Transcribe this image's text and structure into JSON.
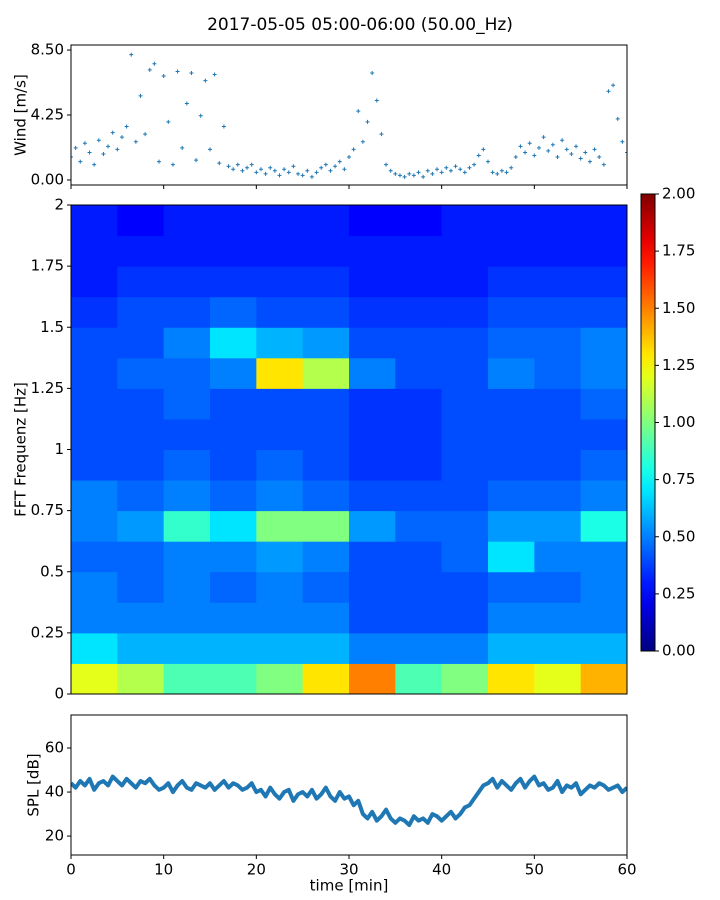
{
  "chart_data": [
    {
      "type": "scatter",
      "title": "2017-05-05 05:00-06:00 (50.00_Hz)",
      "ylabel": "Wind [m/s]",
      "color": "#1f77b4",
      "xlim": [
        0,
        60
      ],
      "ylim": [
        -0.33,
        8.83
      ],
      "yticks": [
        {
          "value": 0,
          "label": "0.00"
        },
        {
          "value": 4.25,
          "label": "4.25"
        },
        {
          "value": 8.5,
          "label": "8.50"
        }
      ],
      "x": [
        0,
        0.5,
        1,
        1.5,
        2,
        2.5,
        3,
        3.5,
        4,
        4.5,
        5,
        5.5,
        6,
        6.5,
        7,
        7.5,
        8,
        8.5,
        9,
        9.5,
        10,
        10.5,
        11,
        11.5,
        12,
        12.5,
        13,
        13.5,
        14,
        14.5,
        15,
        15.5,
        16,
        16.5,
        17,
        17.5,
        18,
        18.5,
        19,
        19.5,
        20,
        20.5,
        21,
        21.5,
        22,
        22.5,
        23,
        23.5,
        24,
        24.5,
        25,
        25.5,
        26,
        26.5,
        27,
        27.5,
        28,
        28.5,
        29,
        29.5,
        30,
        30.5,
        31,
        31.5,
        32,
        32.5,
        33,
        33.5,
        34,
        34.5,
        35,
        35.5,
        36,
        36.5,
        37,
        37.5,
        38,
        38.5,
        39,
        39.5,
        40,
        40.5,
        41,
        41.5,
        42,
        42.5,
        43,
        43.5,
        44,
        44.5,
        45,
        45.5,
        46,
        46.5,
        47,
        47.5,
        48,
        48.5,
        49,
        49.5,
        50,
        50.5,
        51,
        51.5,
        52,
        52.5,
        53,
        53.5,
        54,
        54.5,
        55,
        55.5,
        56,
        56.5,
        57,
        57.5,
        58,
        58.5,
        59,
        59.5,
        60
      ],
      "values": [
        1.5,
        2.1,
        1.2,
        2.4,
        1.8,
        1.0,
        2.6,
        1.7,
        2.2,
        3.1,
        2.0,
        2.8,
        3.5,
        8.2,
        2.5,
        5.5,
        3.0,
        7.2,
        7.6,
        1.2,
        6.8,
        3.8,
        1.0,
        7.1,
        2.1,
        5.0,
        7.0,
        1.3,
        4.2,
        6.5,
        2.0,
        6.9,
        1.1,
        3.5,
        0.9,
        0.7,
        1.0,
        0.6,
        0.8,
        1.0,
        0.5,
        0.7,
        0.4,
        0.8,
        0.6,
        0.3,
        0.7,
        0.5,
        0.9,
        0.4,
        0.3,
        0.6,
        0.2,
        0.5,
        0.8,
        1.0,
        0.6,
        0.9,
        1.2,
        0.7,
        1.5,
        2.0,
        4.5,
        2.5,
        3.8,
        7.0,
        5.2,
        3.0,
        1.0,
        0.6,
        0.4,
        0.3,
        0.2,
        0.4,
        0.3,
        0.5,
        0.2,
        0.6,
        0.4,
        0.7,
        0.5,
        0.8,
        0.6,
        0.9,
        0.7,
        0.5,
        0.8,
        1.0,
        1.6,
        2.0,
        1.2,
        0.5,
        0.4,
        0.6,
        0.5,
        0.8,
        1.5,
        2.2,
        1.8,
        2.4,
        1.6,
        2.1,
        2.8,
        1.9,
        2.3,
        1.5,
        2.6,
        2.0,
        1.7,
        2.2,
        1.4,
        1.8,
        1.2,
        2.0,
        1.5,
        1.0,
        5.8,
        6.2,
        4.0,
        2.5,
        1.8
      ]
    },
    {
      "type": "heatmap",
      "ylabel": "FFT Frequenz [Hz]",
      "colormap": "jet",
      "clim": [
        0,
        2
      ],
      "xlim": [
        0,
        60
      ],
      "ylim": [
        0,
        2
      ],
      "yticks": [
        0,
        0.25,
        0.5,
        0.75,
        1,
        1.25,
        1.5,
        1.75,
        2
      ],
      "colorbar_ticks": [
        {
          "value": 0,
          "label": "0.00"
        },
        {
          "value": 0.25,
          "label": "0.25"
        },
        {
          "value": 0.5,
          "label": "0.50"
        },
        {
          "value": 0.75,
          "label": "0.75"
        },
        {
          "value": 1,
          "label": "1.00"
        },
        {
          "value": 1.25,
          "label": "1.25"
        },
        {
          "value": 1.5,
          "label": "1.50"
        },
        {
          "value": 1.75,
          "label": "1.75"
        },
        {
          "value": 2,
          "label": "2.00"
        }
      ],
      "xbins": [
        0,
        5,
        10,
        15,
        20,
        25,
        30,
        35,
        40,
        45,
        50,
        55,
        60
      ],
      "ybins": [
        0,
        0.125,
        0.25,
        0.375,
        0.5,
        0.625,
        0.75,
        0.875,
        1,
        1.125,
        1.25,
        1.375,
        1.5,
        1.625,
        1.75,
        1.875,
        2
      ],
      "z": [
        [
          1.2,
          1.1,
          0.9,
          0.9,
          1.0,
          1.3,
          1.5,
          0.9,
          1.0,
          1.3,
          1.2,
          1.4
        ],
        [
          0.7,
          0.6,
          0.6,
          0.6,
          0.6,
          0.6,
          0.5,
          0.5,
          0.5,
          0.6,
          0.6,
          0.6
        ],
        [
          0.5,
          0.5,
          0.5,
          0.5,
          0.5,
          0.5,
          0.4,
          0.4,
          0.4,
          0.5,
          0.5,
          0.5
        ],
        [
          0.5,
          0.45,
          0.5,
          0.45,
          0.5,
          0.45,
          0.4,
          0.4,
          0.4,
          0.45,
          0.45,
          0.5
        ],
        [
          0.45,
          0.45,
          0.5,
          0.5,
          0.55,
          0.5,
          0.4,
          0.4,
          0.45,
          0.7,
          0.5,
          0.5
        ],
        [
          0.5,
          0.55,
          0.85,
          0.7,
          1.0,
          1.0,
          0.55,
          0.45,
          0.45,
          0.55,
          0.55,
          0.8
        ],
        [
          0.5,
          0.45,
          0.5,
          0.45,
          0.5,
          0.45,
          0.4,
          0.4,
          0.4,
          0.45,
          0.45,
          0.5
        ],
        [
          0.4,
          0.4,
          0.45,
          0.4,
          0.45,
          0.4,
          0.35,
          0.35,
          0.4,
          0.4,
          0.4,
          0.45
        ],
        [
          0.4,
          0.4,
          0.4,
          0.4,
          0.4,
          0.4,
          0.35,
          0.35,
          0.4,
          0.4,
          0.4,
          0.4
        ],
        [
          0.4,
          0.4,
          0.45,
          0.4,
          0.4,
          0.4,
          0.35,
          0.35,
          0.4,
          0.4,
          0.4,
          0.45
        ],
        [
          0.4,
          0.45,
          0.45,
          0.5,
          1.3,
          1.1,
          0.5,
          0.4,
          0.4,
          0.5,
          0.45,
          0.5
        ],
        [
          0.4,
          0.4,
          0.5,
          0.7,
          0.6,
          0.55,
          0.4,
          0.4,
          0.4,
          0.45,
          0.45,
          0.5
        ],
        [
          0.35,
          0.4,
          0.4,
          0.45,
          0.4,
          0.4,
          0.35,
          0.35,
          0.35,
          0.4,
          0.4,
          0.4
        ],
        [
          0.3,
          0.35,
          0.35,
          0.35,
          0.35,
          0.35,
          0.3,
          0.3,
          0.3,
          0.35,
          0.35,
          0.35
        ],
        [
          0.3,
          0.3,
          0.3,
          0.3,
          0.3,
          0.3,
          0.3,
          0.3,
          0.3,
          0.3,
          0.3,
          0.3
        ],
        [
          0.3,
          0.25,
          0.3,
          0.3,
          0.3,
          0.3,
          0.25,
          0.25,
          0.3,
          0.3,
          0.3,
          0.3
        ]
      ]
    },
    {
      "type": "line",
      "ylabel": "SPL [dB]",
      "xlabel": "time [min]",
      "color": "#1f77b4",
      "xlim": [
        0,
        60
      ],
      "ylim": [
        11.4,
        75
      ],
      "xticks": [
        0,
        10,
        20,
        30,
        40,
        50,
        60
      ],
      "yticks": [
        20,
        40,
        60
      ],
      "x": [
        0,
        0.5,
        1,
        1.5,
        2,
        2.5,
        3,
        3.5,
        4,
        4.5,
        5,
        5.5,
        6,
        6.5,
        7,
        7.5,
        8,
        8.5,
        9,
        9.5,
        10,
        10.5,
        11,
        11.5,
        12,
        12.5,
        13,
        13.5,
        14,
        14.5,
        15,
        15.5,
        16,
        16.5,
        17,
        17.5,
        18,
        18.5,
        19,
        19.5,
        20,
        20.5,
        21,
        21.5,
        22,
        22.5,
        23,
        23.5,
        24,
        24.5,
        25,
        25.5,
        26,
        26.5,
        27,
        27.5,
        28,
        28.5,
        29,
        29.5,
        30,
        30.5,
        31,
        31.5,
        32,
        32.5,
        33,
        33.5,
        34,
        34.5,
        35,
        35.5,
        36,
        36.5,
        37,
        37.5,
        38,
        38.5,
        39,
        39.5,
        40,
        40.5,
        41,
        41.5,
        42,
        42.5,
        43,
        43.5,
        44,
        44.5,
        45,
        45.5,
        46,
        46.5,
        47,
        47.5,
        48,
        48.5,
        49,
        49.5,
        50,
        50.5,
        51,
        51.5,
        52,
        52.5,
        53,
        53.5,
        54,
        54.5,
        55,
        55.5,
        56,
        56.5,
        57,
        57.5,
        58,
        58.5,
        59,
        59.5,
        60
      ],
      "values": [
        44,
        42,
        45,
        43,
        46,
        41,
        44,
        45,
        43,
        47,
        45,
        43,
        46,
        44,
        42,
        45,
        44,
        46,
        43,
        41,
        42,
        44,
        40,
        43,
        45,
        42,
        41,
        44,
        43,
        42,
        44,
        41,
        43,
        45,
        42,
        44,
        43,
        41,
        42,
        44,
        40,
        41,
        38,
        42,
        39,
        37,
        40,
        41,
        36,
        39,
        40,
        38,
        41,
        37,
        39,
        42,
        38,
        36,
        40,
        37,
        38,
        34,
        36,
        30,
        28,
        31,
        27,
        29,
        32,
        28,
        26,
        28,
        27,
        25,
        29,
        27,
        28,
        26,
        30,
        29,
        27,
        29,
        31,
        28,
        30,
        33,
        34,
        37,
        40,
        43,
        44,
        46,
        42,
        45,
        43,
        41,
        44,
        46,
        42,
        45,
        47,
        43,
        44,
        41,
        42,
        45,
        40,
        43,
        42,
        44,
        39,
        41,
        43,
        42,
        44,
        43,
        41,
        42,
        43,
        40,
        42
      ]
    }
  ]
}
